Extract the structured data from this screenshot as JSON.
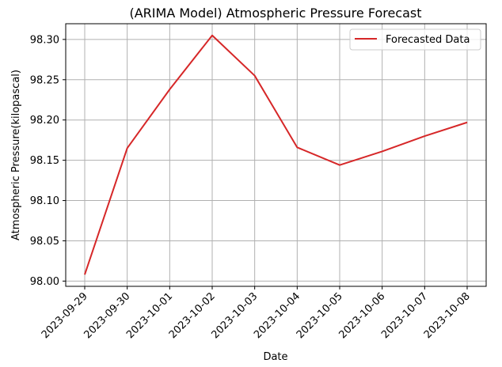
{
  "chart_data": {
    "type": "line",
    "title": "(ARIMA Model) Atmospheric Pressure Forecast",
    "xlabel": "Date",
    "ylabel": "Atmospheric Pressure(kilopascal)",
    "x": [
      "2023-09-29",
      "2023-09-30",
      "2023-10-01",
      "2023-10-02",
      "2023-10-03",
      "2023-10-04",
      "2023-10-05",
      "2023-10-06",
      "2023-10-07",
      "2023-10-08"
    ],
    "series": [
      {
        "name": "Forecasted Data",
        "color": "#d62728",
        "values": [
          98.008,
          98.165,
          98.238,
          98.305,
          98.255,
          98.166,
          98.144,
          98.161,
          98.18,
          98.197
        ]
      }
    ],
    "yticks": [
      "98.00",
      "98.05",
      "98.10",
      "98.15",
      "98.20",
      "98.25",
      "98.30"
    ],
    "ylim": [
      97.9935,
      98.3195
    ],
    "grid": true,
    "legend_position": "upper right"
  }
}
